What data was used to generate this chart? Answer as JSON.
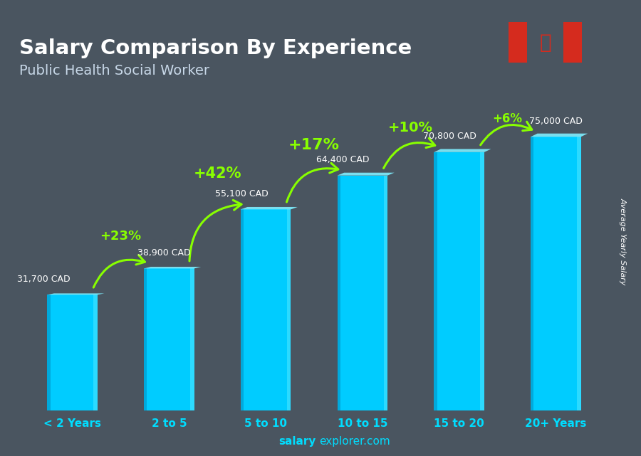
{
  "title": "Salary Comparison By Experience",
  "subtitle": "Public Health Social Worker",
  "categories": [
    "< 2 Years",
    "2 to 5",
    "5 to 10",
    "10 to 15",
    "15 to 20",
    "20+ Years"
  ],
  "values": [
    31700,
    38900,
    55100,
    64400,
    70800,
    75000
  ],
  "labels": [
    "31,700 CAD",
    "38,900 CAD",
    "55,100 CAD",
    "64,400 CAD",
    "70,800 CAD",
    "75,000 CAD"
  ],
  "pct_changes": [
    null,
    "+23%",
    "+42%",
    "+17%",
    "+10%",
    "+6%"
  ],
  "bar_color_main": "#00CCFF",
  "bar_color_light": "#40E0FF",
  "bar_color_dark": "#0088BB",
  "bar_color_top": "#80EEFF",
  "bg_color": "#4a5560",
  "text_white": "#FFFFFF",
  "text_cyan": "#00DDFF",
  "text_green": "#88FF00",
  "arrow_color": "#88FF00",
  "ylabel": "Average Yearly Salary",
  "footer_normal": "explorer.com",
  "footer_bold": "salary",
  "ylim_max": 95000,
  "bar_width": 0.52
}
